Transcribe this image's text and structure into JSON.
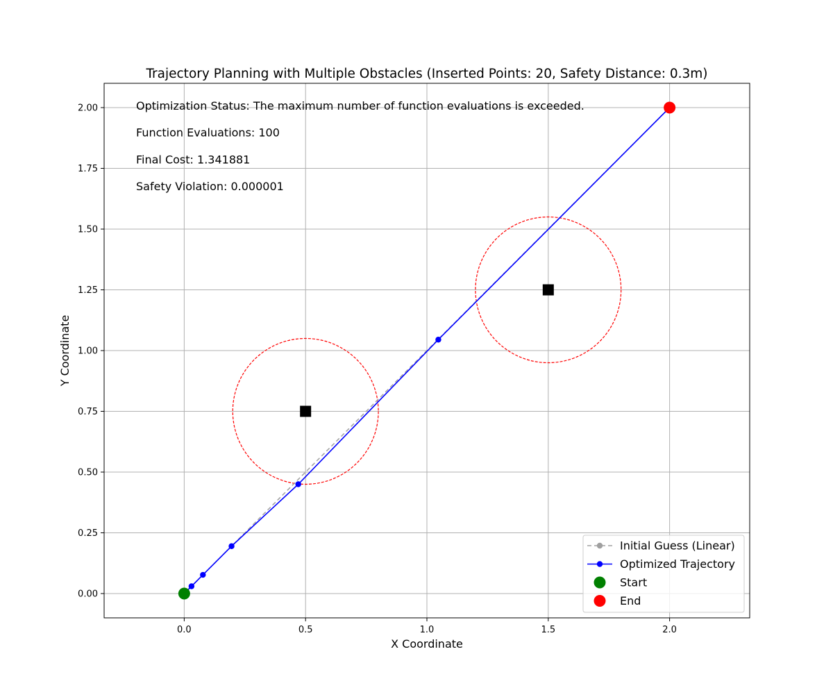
{
  "chart_data": {
    "type": "line",
    "title": "Trajectory Planning with Multiple Obstacles (Inserted Points: 20, Safety Distance: 0.3m)",
    "xlabel": "X Coordinate",
    "ylabel": "Y Coordinate",
    "xlim": [
      -0.33,
      2.33
    ],
    "ylim": [
      -0.1,
      2.1
    ],
    "grid": true,
    "legend_position": "lower right",
    "x_ticks": [
      0.0,
      0.5,
      1.0,
      1.5,
      2.0
    ],
    "x_tick_labels": [
      "0.0",
      "0.5",
      "1.0",
      "1.5",
      "2.0"
    ],
    "y_ticks": [
      0.0,
      0.25,
      0.5,
      0.75,
      1.0,
      1.25,
      1.5,
      1.75,
      2.0
    ],
    "y_tick_labels": [
      "0.00",
      "0.25",
      "0.50",
      "0.75",
      "1.00",
      "1.25",
      "1.50",
      "1.75",
      "2.00"
    ],
    "annotations": [
      "Optimization Status: The maximum number of function evaluations is exceeded.",
      "Function Evaluations: 100",
      "Final Cost: 1.341881",
      "Safety Violation: 0.000001"
    ],
    "series": [
      {
        "name": "Initial Guess (Linear)",
        "color": "#a0a0a0",
        "style": "dashed",
        "points": [
          [
            0.0,
            0.0
          ],
          [
            0.0952,
            0.0952
          ],
          [
            0.1905,
            0.1905
          ],
          [
            0.2857,
            0.2857
          ],
          [
            0.381,
            0.381
          ],
          [
            0.4762,
            0.4762
          ],
          [
            0.5714,
            0.5714
          ],
          [
            0.6667,
            0.6667
          ],
          [
            0.7619,
            0.7619
          ],
          [
            0.8571,
            0.8571
          ],
          [
            0.9524,
            0.9524
          ],
          [
            1.0476,
            1.0476
          ],
          [
            1.1429,
            1.1429
          ],
          [
            1.2381,
            1.2381
          ],
          [
            1.3333,
            1.3333
          ],
          [
            1.4286,
            1.4286
          ],
          [
            1.5238,
            1.5238
          ],
          [
            1.619,
            1.619
          ],
          [
            1.7143,
            1.7143
          ],
          [
            1.8095,
            1.8095
          ],
          [
            1.9048,
            1.9048
          ],
          [
            2.0,
            2.0
          ]
        ]
      },
      {
        "name": "Optimized Trajectory",
        "color": "#0000ff",
        "style": "solid",
        "points": [
          [
            0.0,
            0.0
          ],
          [
            0.03,
            0.03
          ],
          [
            0.077,
            0.077
          ],
          [
            0.195,
            0.195
          ],
          [
            0.47,
            0.45
          ],
          [
            1.047,
            1.045
          ],
          [
            2.0,
            2.0
          ]
        ]
      }
    ],
    "markers": [
      {
        "name": "Start",
        "x": 0.0,
        "y": 0.0,
        "color": "#008000"
      },
      {
        "name": "End",
        "x": 2.0,
        "y": 2.0,
        "color": "#ff0000"
      }
    ],
    "obstacles": [
      {
        "x": 0.5,
        "y": 0.75,
        "safety_radius": 0.3
      },
      {
        "x": 1.5,
        "y": 1.25,
        "safety_radius": 0.3
      }
    ],
    "colors": {
      "obstacle": "#000000",
      "safety_circle": "#ff0000",
      "grid": "#b0b0b0"
    }
  }
}
